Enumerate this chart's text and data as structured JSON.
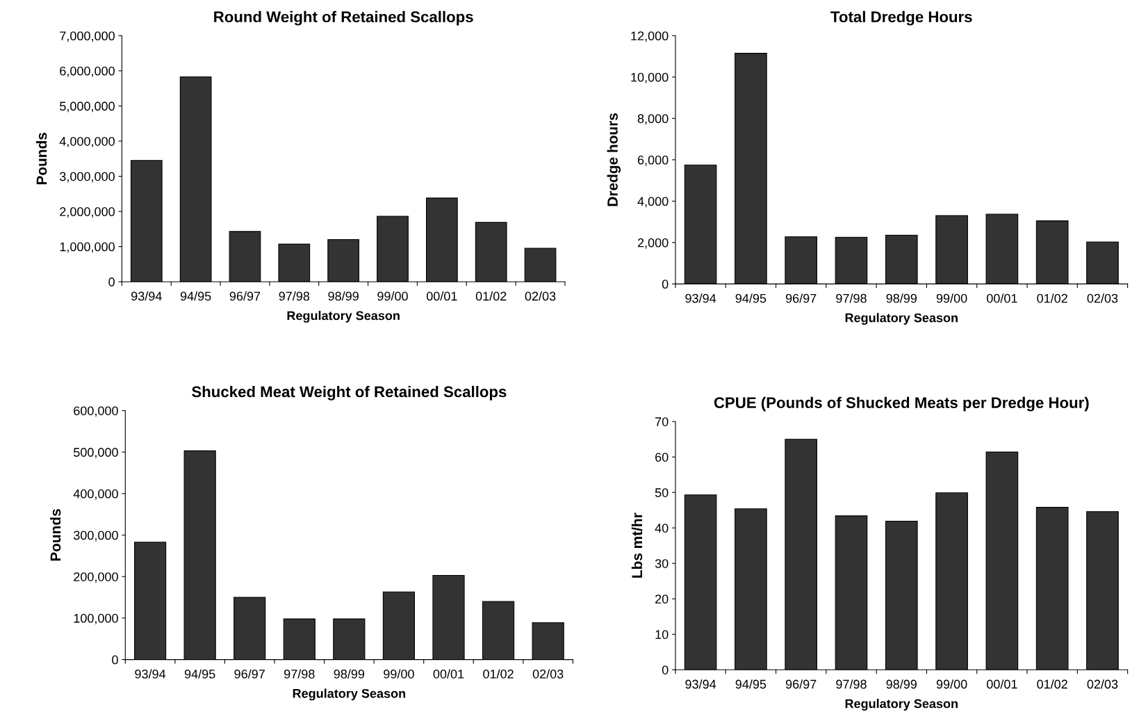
{
  "chart_data": [
    {
      "type": "bar",
      "title": "Round Weight of Retained Scallops",
      "xlabel": "Regulatory Season",
      "ylabel": "Pounds",
      "categories": [
        "93/94",
        "94/95",
        "96/97",
        "97/98",
        "98/99",
        "99/00",
        "00/01",
        "01/02",
        "02/03"
      ],
      "color": "#333333",
      "values": [
        3450000,
        5830000,
        1430000,
        1070000,
        1200000,
        1860000,
        2380000,
        1690000,
        950000
      ],
      "ylim": [
        0,
        7000000
      ],
      "yticks": [
        0,
        {
          "value": 1000000,
          "label": "1,000,000"
        },
        {
          "value": 2000000,
          "label": "2,000,000"
        },
        {
          "value": 3000000,
          "label": "3,000,000"
        },
        {
          "value": 4000000,
          "label": "4,000,000"
        },
        {
          "value": 5000000,
          "label": "5,000,000"
        },
        {
          "value": 6000000,
          "label": "6,000,000"
        },
        {
          "value": 7000000,
          "label": "7,000,000"
        }
      ],
      "grid": false
    },
    {
      "type": "bar",
      "title": "Total Dredge Hours",
      "xlabel": "Regulatory Season",
      "ylabel": "Dredge hours",
      "categories": [
        "93/94",
        "94/95",
        "96/97",
        "97/98",
        "98/99",
        "99/00",
        "00/01",
        "01/02",
        "02/03"
      ],
      "color": "#333333",
      "values": [
        5750,
        11150,
        2280,
        2250,
        2350,
        3300,
        3370,
        3050,
        2030
      ],
      "ylim": [
        0,
        12000
      ],
      "yticks": [
        0,
        {
          "value": 2000,
          "label": "2,000"
        },
        {
          "value": 4000,
          "label": "4,000"
        },
        {
          "value": 6000,
          "label": "6,000"
        },
        {
          "value": 8000,
          "label": "8,000"
        },
        {
          "value": 10000,
          "label": "10,000"
        },
        {
          "value": 12000,
          "label": "12,000"
        }
      ],
      "grid": false
    },
    {
      "type": "bar",
      "title": "Shucked Meat Weight of Retained Scallops",
      "xlabel": "Regulatory Season",
      "ylabel": "Pounds",
      "categories": [
        "93/94",
        "94/95",
        "96/97",
        "97/98",
        "98/99",
        "99/00",
        "00/01",
        "01/02",
        "02/03"
      ],
      "color": "#333333",
      "values": [
        283000,
        503000,
        150000,
        98000,
        98000,
        163000,
        203000,
        140000,
        89000
      ],
      "ylim": [
        0,
        600000
      ],
      "yticks": [
        0,
        {
          "value": 100000,
          "label": "100,000"
        },
        {
          "value": 200000,
          "label": "200,000"
        },
        {
          "value": 300000,
          "label": "300,000"
        },
        {
          "value": 400000,
          "label": "400,000"
        },
        {
          "value": 500000,
          "label": "500,000"
        },
        {
          "value": 600000,
          "label": "600,000"
        }
      ],
      "grid": false
    },
    {
      "type": "bar",
      "title": "CPUE (Pounds of Shucked Meats per Dredge Hour)",
      "xlabel": "Regulatory Season",
      "ylabel": "Lbs mt/hr",
      "categories": [
        "93/94",
        "94/95",
        "96/97",
        "97/98",
        "98/99",
        "99/00",
        "00/01",
        "01/02",
        "02/03"
      ],
      "color": "#333333",
      "values": [
        49.3,
        45.4,
        65.0,
        43.4,
        41.9,
        49.9,
        61.4,
        45.8,
        44.6
      ],
      "ylim": [
        0,
        70
      ],
      "yticks": [
        0,
        10,
        20,
        30,
        40,
        50,
        60,
        70
      ],
      "grid": false
    }
  ]
}
